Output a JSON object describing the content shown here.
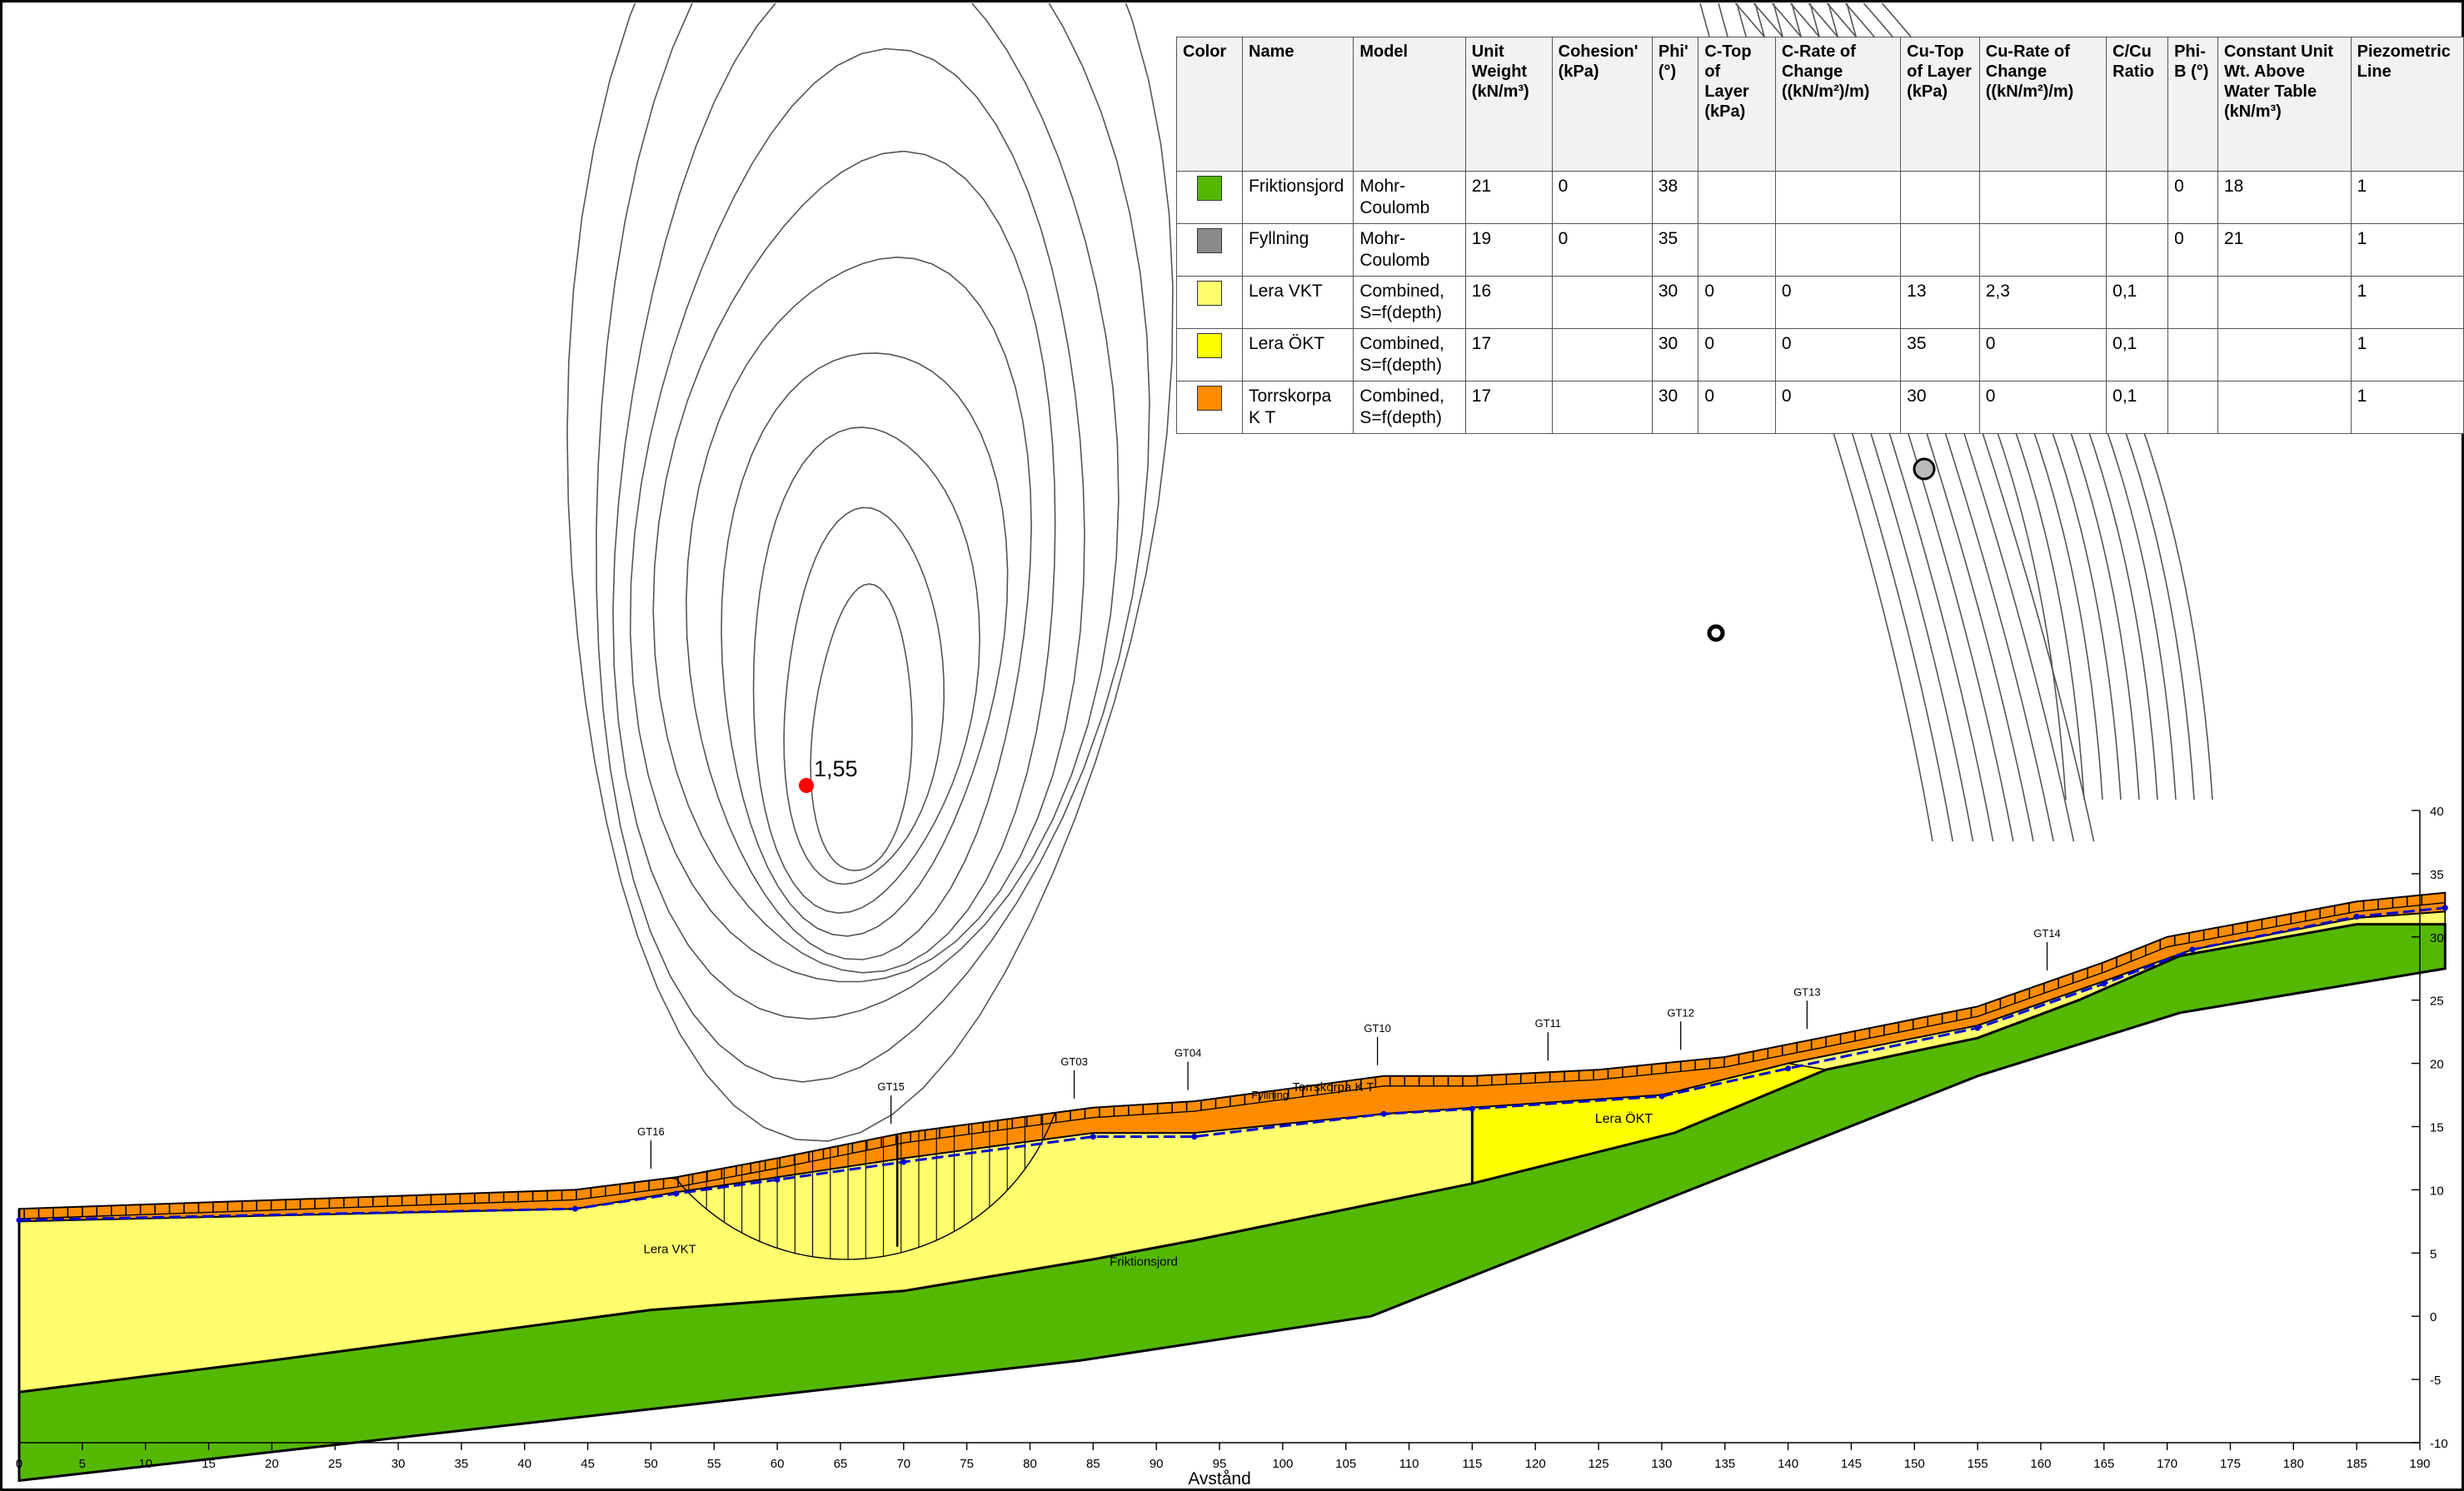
{
  "table": {
    "headers": [
      "Color",
      "Name",
      "Model",
      "Unit Weight (kN/m³)",
      "Cohesion' (kPa)",
      "Phi' (°)",
      "C-Top of Layer (kPa)",
      "C-Rate of Change ((kN/m²)/m)",
      "Cu-Top of Layer (kPa)",
      "Cu-Rate of Change ((kN/m²)/m)",
      "C/Cu Ratio",
      "Phi-B (°)",
      "Constant Unit Wt. Above Water Table (kN/m³)",
      "Piezometric Line"
    ],
    "rows": [
      {
        "color": "#55b800",
        "cells": [
          "Friktionsjord",
          "Mohr-Coulomb",
          "21",
          "0",
          "38",
          "",
          "",
          "",
          "",
          "",
          "0",
          "18",
          "1"
        ]
      },
      {
        "color": "#8a8a8a",
        "cells": [
          "Fyllning",
          "Mohr-Coulomb",
          "19",
          "0",
          "35",
          "",
          "",
          "",
          "",
          "",
          "0",
          "21",
          "1"
        ]
      },
      {
        "color": "#ffff6e",
        "cells": [
          "Lera VKT",
          "Combined, S=f(depth)",
          "16",
          "",
          "30",
          "0",
          "0",
          "13",
          "2,3",
          "0,1",
          "",
          "",
          "1"
        ]
      },
      {
        "color": "#ffff00",
        "cells": [
          "Lera ÖKT",
          "Combined, S=f(depth)",
          "17",
          "",
          "30",
          "0",
          "0",
          "35",
          "0",
          "0,1",
          "",
          "",
          "1"
        ]
      },
      {
        "color": "#ff8c00",
        "cells": [
          "Torrskorpa K T",
          "Combined, S=f(depth)",
          "17",
          "",
          "30",
          "0",
          "0",
          "30",
          "0",
          "0,1",
          "",
          "",
          "1"
        ]
      }
    ]
  },
  "section": {
    "x_axis_label": "Avstånd",
    "x_ticks": [
      "0",
      "5",
      "10",
      "15",
      "20",
      "25",
      "30",
      "35",
      "40",
      "45",
      "50",
      "55",
      "60",
      "65",
      "70",
      "75",
      "80",
      "85",
      "90",
      "95",
      "100",
      "105",
      "110",
      "115",
      "120",
      "125",
      "130",
      "135",
      "140",
      "145",
      "150",
      "155",
      "160",
      "165",
      "170",
      "175",
      "180",
      "185",
      "190"
    ],
    "y_ticks": [
      "-10",
      "-5",
      "0",
      "5",
      "10",
      "15",
      "20",
      "25",
      "30",
      "35",
      "40"
    ],
    "x_range": [
      0,
      190
    ],
    "y_range": [
      -10,
      40
    ]
  },
  "factor_of_safety": {
    "label": "1,55",
    "color": "#ff0000"
  },
  "layer_labels": {
    "lera_vkt": "Lera VKT",
    "lera_okt": "Lera ÖKT",
    "friktionsjord": "Friktionsjord",
    "torrskorpa": "Torrskorpa K T",
    "fyllning_sub": "Fyllning"
  },
  "boreholes": [
    "GT16",
    "GT15",
    "GT03",
    "GT04",
    "GT10",
    "GT11",
    "GT12",
    "GT13",
    "GT14"
  ],
  "colors": {
    "friktionsjord": "#55b800",
    "lera_vkt": "#ffff6e",
    "lera_okt": "#ffff00",
    "torrskorpa": "#ff8c00",
    "piezometric": "#0000cc",
    "contour": "#555555"
  }
}
